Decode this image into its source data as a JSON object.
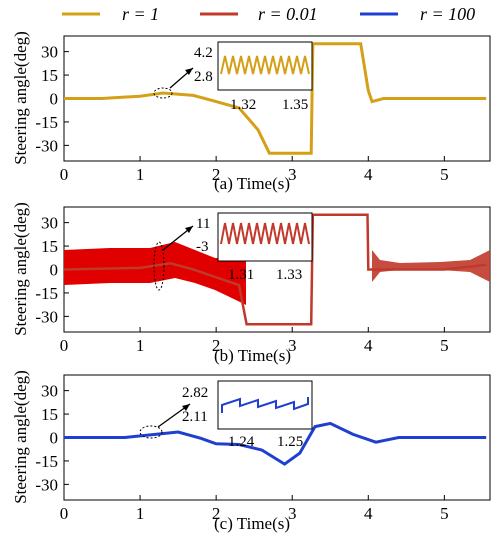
{
  "legend": [
    {
      "label": "r = 1",
      "color": "#D4A017"
    },
    {
      "label": "r = 0.01",
      "color": "#C0392B"
    },
    {
      "label": "r = 100",
      "color": "#1F3FD0"
    }
  ],
  "chart_data": [
    {
      "type": "line",
      "caption": "(a)  Time(s)",
      "ylabel": "Steering angle(deg)",
      "xlim": [
        0,
        5.6
      ],
      "ylim": [
        -40,
        40
      ],
      "yticks": [
        "30",
        "15",
        "0",
        "-15",
        "-30"
      ],
      "xticks": [
        "0",
        "1",
        "2",
        "3",
        "4",
        "5"
      ],
      "series": [
        {
          "name": "r = 1",
          "color": "#D4A017",
          "x": [
            0,
            0.5,
            1.0,
            1.3,
            1.7,
            2.0,
            2.3,
            2.55,
            2.7,
            3.25,
            3.27,
            3.9,
            4.0,
            4.05,
            4.2,
            5.55
          ],
          "y": [
            0,
            0,
            1.5,
            3.5,
            2,
            -2,
            -6,
            -20,
            -35,
            -35,
            35,
            35,
            5,
            -2,
            0,
            0
          ]
        }
      ],
      "inset": {
        "xticks": [
          "1.32",
          "1.35"
        ],
        "yticks": [
          "4.2",
          "2.8"
        ]
      }
    },
    {
      "type": "line",
      "caption": "(b)  Time(s)",
      "ylabel": "Steering angle(deg)",
      "xlim": [
        0,
        5.6
      ],
      "ylim": [
        -40,
        40
      ],
      "yticks": [
        "30",
        "15",
        "0",
        "-15",
        "-30"
      ],
      "xticks": [
        "0",
        "1",
        "2",
        "3",
        "4",
        "5"
      ],
      "series": [
        {
          "name": "r = 0.01",
          "color": "#C0392B",
          "x": [
            0,
            1.0,
            1.4,
            1.7,
            2.0,
            2.3,
            2.4,
            3.25,
            3.27,
            3.99,
            4.0,
            4.3,
            5.0,
            5.55
          ],
          "y": [
            0,
            1,
            4,
            0,
            -5,
            -10,
            -35,
            -35,
            35,
            35,
            0,
            0,
            0,
            3
          ]
        }
      ],
      "inset": {
        "xticks": [
          "1.31",
          "1.33"
        ],
        "yticks": [
          "11",
          "-3"
        ]
      }
    },
    {
      "type": "line",
      "caption": "(c)  Time(s)",
      "ylabel": "Steering angle(deg)",
      "xlim": [
        0,
        5.6
      ],
      "ylim": [
        -40,
        40
      ],
      "yticks": [
        "30",
        "15",
        "0",
        "-15",
        "-30"
      ],
      "xticks": [
        "0",
        "1",
        "2",
        "3",
        "4",
        "5"
      ],
      "series": [
        {
          "name": "r = 100",
          "color": "#1F3FD0",
          "x": [
            0,
            0.8,
            1.2,
            1.5,
            1.8,
            2.0,
            2.3,
            2.6,
            2.9,
            3.1,
            3.3,
            3.5,
            3.8,
            4.1,
            4.4,
            5.55
          ],
          "y": [
            0,
            0,
            2,
            3.5,
            -0.5,
            -4,
            -4.5,
            -8,
            -17,
            -10,
            7,
            9,
            2,
            -3,
            0,
            0
          ]
        }
      ],
      "inset": {
        "xticks": [
          "1.24",
          "1.25"
        ],
        "yticks": [
          "2.82",
          "2.11"
        ]
      }
    }
  ]
}
